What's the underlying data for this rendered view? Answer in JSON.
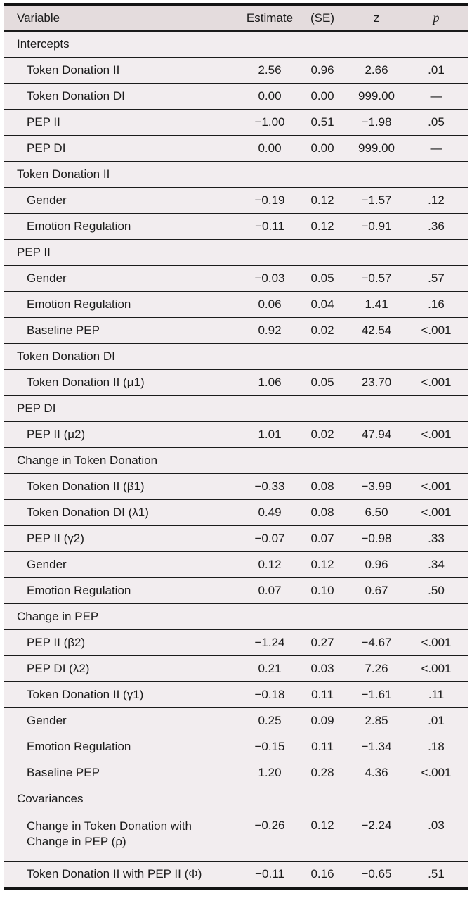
{
  "table": {
    "columns": {
      "variable": "Variable",
      "estimate": "Estimate",
      "se": "(SE)",
      "z": "z",
      "p": "p"
    },
    "colors": {
      "header_bg": "#e4dcdd",
      "body_bg": "#f2edef",
      "rule": "#1b1b1b"
    },
    "rows": [
      {
        "type": "section",
        "label": "Intercepts"
      },
      {
        "type": "data",
        "label": "Token Donation II",
        "estimate": "2.56",
        "se": "0.96",
        "z": "2.66",
        "p": ".01"
      },
      {
        "type": "data",
        "label": "Token Donation DI",
        "estimate": "0.00",
        "se": "0.00",
        "z": "999.00",
        "p": "—"
      },
      {
        "type": "data",
        "label": "PEP II",
        "estimate": "−1.00",
        "se": "0.51",
        "z": "−1.98",
        "p": ".05"
      },
      {
        "type": "data",
        "label": "PEP DI",
        "estimate": "0.00",
        "se": "0.00",
        "z": "999.00",
        "p": "—"
      },
      {
        "type": "section",
        "label": "Token Donation II"
      },
      {
        "type": "data",
        "label": "Gender",
        "estimate": "−0.19",
        "se": "0.12",
        "z": "−1.57",
        "p": ".12"
      },
      {
        "type": "data",
        "label": "Emotion Regulation",
        "estimate": "−0.11",
        "se": "0.12",
        "z": "−0.91",
        "p": ".36"
      },
      {
        "type": "section",
        "label": "PEP II"
      },
      {
        "type": "data",
        "label": "Gender",
        "estimate": "−0.03",
        "se": "0.05",
        "z": "−0.57",
        "p": ".57"
      },
      {
        "type": "data",
        "label": "Emotion Regulation",
        "estimate": "0.06",
        "se": "0.04",
        "z": "1.41",
        "p": ".16"
      },
      {
        "type": "data",
        "label": "Baseline PEP",
        "estimate": "0.92",
        "se": "0.02",
        "z": "42.54",
        "p": "<.001"
      },
      {
        "type": "section",
        "label": "Token Donation DI"
      },
      {
        "type": "data",
        "label": "Token Donation II (μ1)",
        "estimate": "1.06",
        "se": "0.05",
        "z": "23.70",
        "p": "<.001"
      },
      {
        "type": "section",
        "label": "PEP DI"
      },
      {
        "type": "data",
        "label": "PEP II (μ2)",
        "estimate": "1.01",
        "se": "0.02",
        "z": "47.94",
        "p": "<.001"
      },
      {
        "type": "section",
        "label": "Change in Token Donation"
      },
      {
        "type": "data",
        "label": "Token Donation II (β1)",
        "estimate": "−0.33",
        "se": "0.08",
        "z": "−3.99",
        "p": "<.001"
      },
      {
        "type": "data",
        "label": "Token Donation DI (λ1)",
        "estimate": "0.49",
        "se": "0.08",
        "z": "6.50",
        "p": "<.001"
      },
      {
        "type": "data",
        "label": "PEP II (γ2)",
        "estimate": "−0.07",
        "se": "0.07",
        "z": "−0.98",
        "p": ".33"
      },
      {
        "type": "data",
        "label": "Gender",
        "estimate": "0.12",
        "se": "0.12",
        "z": "0.96",
        "p": ".34"
      },
      {
        "type": "data",
        "label": "Emotion Regulation",
        "estimate": "0.07",
        "se": "0.10",
        "z": "0.67",
        "p": ".50"
      },
      {
        "type": "section",
        "label": "Change in PEP"
      },
      {
        "type": "data",
        "label": "PEP II (β2)",
        "estimate": "−1.24",
        "se": "0.27",
        "z": "−4.67",
        "p": "<.001"
      },
      {
        "type": "data",
        "label": "PEP DI (λ2)",
        "estimate": "0.21",
        "se": "0.03",
        "z": "7.26",
        "p": "<.001"
      },
      {
        "type": "data",
        "label": "Token Donation II (γ1)",
        "estimate": "−0.18",
        "se": "0.11",
        "z": "−1.61",
        "p": ".11"
      },
      {
        "type": "data",
        "label": "Gender",
        "estimate": "0.25",
        "se": "0.09",
        "z": "2.85",
        "p": ".01"
      },
      {
        "type": "data",
        "label": "Emotion Regulation",
        "estimate": "−0.15",
        "se": "0.11",
        "z": "−1.34",
        "p": ".18"
      },
      {
        "type": "data",
        "label": "Baseline PEP",
        "estimate": "1.20",
        "se": "0.28",
        "z": "4.36",
        "p": "<.001"
      },
      {
        "type": "section",
        "label": "Covariances"
      },
      {
        "type": "data",
        "label": "Change in Token Donation with\nChange in PEP (ρ)",
        "estimate": "−0.26",
        "se": "0.12",
        "z": "−2.24",
        "p": ".03"
      },
      {
        "type": "data",
        "label": "Token Donation II with PEP II (Φ)",
        "estimate": "−0.11",
        "se": "0.16",
        "z": "−0.65",
        "p": ".51"
      }
    ]
  }
}
